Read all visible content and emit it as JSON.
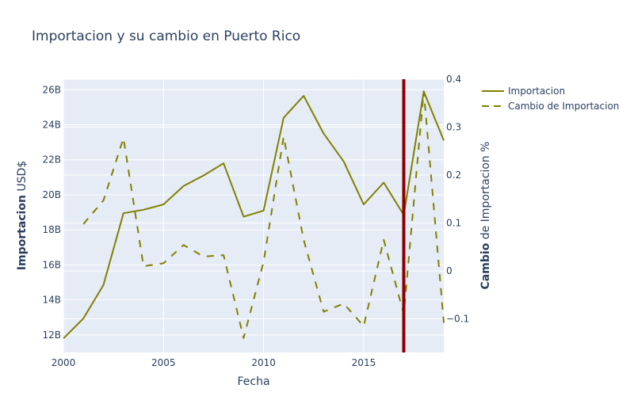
{
  "chart_data": {
    "type": "line",
    "title": "Importacion y su cambio en Puerto Rico",
    "xlabel": "Fecha",
    "ylabel_bold": "Importacion",
    "ylabel_rest": " USD$",
    "y2label_bold": "Cambio",
    "y2label_rest": " de Importacion %",
    "xlim": [
      2000,
      2019
    ],
    "ylim": [
      11000000000,
      26600000000
    ],
    "y2lim": [
      -0.17,
      0.4
    ],
    "x_ticks": [
      2000,
      2005,
      2010,
      2015
    ],
    "x_tick_labels": [
      "2000",
      "2005",
      "2010",
      "2015"
    ],
    "y_ticks": [
      12000000000,
      14000000000,
      16000000000,
      18000000000,
      20000000000,
      22000000000,
      24000000000,
      26000000000
    ],
    "y_tick_labels": [
      "12B",
      "14B",
      "16B",
      "18B",
      "20B",
      "22B",
      "24B",
      "26B"
    ],
    "y2_ticks": [
      -0.1,
      0,
      0.1,
      0.2,
      0.3,
      0.4
    ],
    "y2_tick_labels": [
      "−0.1",
      "0",
      "0.1",
      "0.2",
      "0.3",
      "0.4"
    ],
    "vertical_line": {
      "x": 2017,
      "color": "#8b0000"
    },
    "grid": true,
    "legend_position": "top-right",
    "series": [
      {
        "name": "Importacion",
        "axis": "y",
        "dash": "solid",
        "color": "#808000",
        "x": [
          2000,
          2001,
          2002,
          2003,
          2004,
          2005,
          2006,
          2007,
          2008,
          2009,
          2010,
          2011,
          2012,
          2013,
          2014,
          2015,
          2016,
          2017,
          2018,
          2019
        ],
        "values": [
          11800000000,
          12950000000,
          14850000000,
          18950000000,
          19150000000,
          19450000000,
          20500000000,
          21100000000,
          21800000000,
          18750000000,
          19100000000,
          24400000000,
          25650000000,
          23500000000,
          21900000000,
          19450000000,
          20700000000,
          18850000000,
          25900000000,
          23100000000
        ]
      },
      {
        "name": "Cambio de Importacion",
        "axis": "y2",
        "dash": "dash",
        "color": "#808000",
        "x": [
          2001,
          2002,
          2003,
          2004,
          2005,
          2006,
          2007,
          2008,
          2009,
          2010,
          2011,
          2012,
          2013,
          2014,
          2015,
          2016,
          2017,
          2018,
          2019
        ],
        "values": [
          0.098,
          0.147,
          0.277,
          0.01,
          0.016,
          0.054,
          0.03,
          0.033,
          -0.14,
          0.019,
          0.28,
          0.065,
          -0.085,
          -0.068,
          -0.115,
          0.065,
          -0.09,
          0.375,
          -0.108
        ]
      }
    ]
  }
}
